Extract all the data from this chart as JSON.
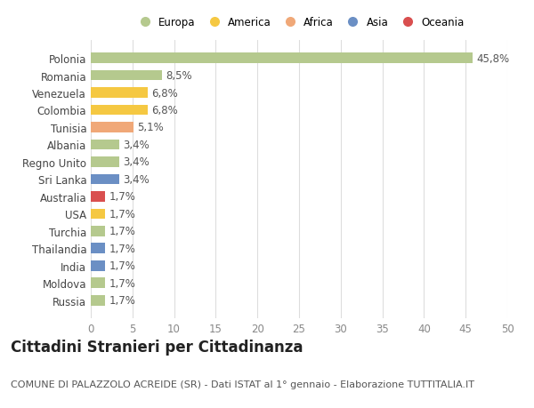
{
  "countries": [
    "Polonia",
    "Romania",
    "Venezuela",
    "Colombia",
    "Tunisia",
    "Albania",
    "Regno Unito",
    "Sri Lanka",
    "Australia",
    "USA",
    "Turchia",
    "Thailandia",
    "India",
    "Moldova",
    "Russia"
  ],
  "values": [
    45.8,
    8.5,
    6.8,
    6.8,
    5.1,
    3.4,
    3.4,
    3.4,
    1.7,
    1.7,
    1.7,
    1.7,
    1.7,
    1.7,
    1.7
  ],
  "labels": [
    "45,8%",
    "8,5%",
    "6,8%",
    "6,8%",
    "5,1%",
    "3,4%",
    "3,4%",
    "3,4%",
    "1,7%",
    "1,7%",
    "1,7%",
    "1,7%",
    "1,7%",
    "1,7%",
    "1,7%"
  ],
  "colors": [
    "#b5c98e",
    "#b5c98e",
    "#f5c842",
    "#f5c842",
    "#f0a878",
    "#b5c98e",
    "#b5c98e",
    "#6b8fc4",
    "#d94f4f",
    "#f5c842",
    "#b5c98e",
    "#6b8fc4",
    "#6b8fc4",
    "#b5c98e",
    "#b5c98e"
  ],
  "legend": {
    "labels": [
      "Europa",
      "America",
      "Africa",
      "Asia",
      "Oceania"
    ],
    "colors": [
      "#b5c98e",
      "#f5c842",
      "#f0a878",
      "#6b8fc4",
      "#d94f4f"
    ]
  },
  "title": "Cittadini Stranieri per Cittadinanza",
  "subtitle": "COMUNE DI PALAZZOLO ACREIDE (SR) - Dati ISTAT al 1° gennaio - Elaborazione TUTTITALIA.IT",
  "xlim": [
    0,
    50
  ],
  "xticks": [
    0,
    5,
    10,
    15,
    20,
    25,
    30,
    35,
    40,
    45,
    50
  ],
  "bg_color": "#ffffff",
  "grid_color": "#dddddd",
  "bar_height": 0.6,
  "label_fontsize": 8.5,
  "tick_fontsize": 8.5,
  "title_fontsize": 12,
  "subtitle_fontsize": 8
}
